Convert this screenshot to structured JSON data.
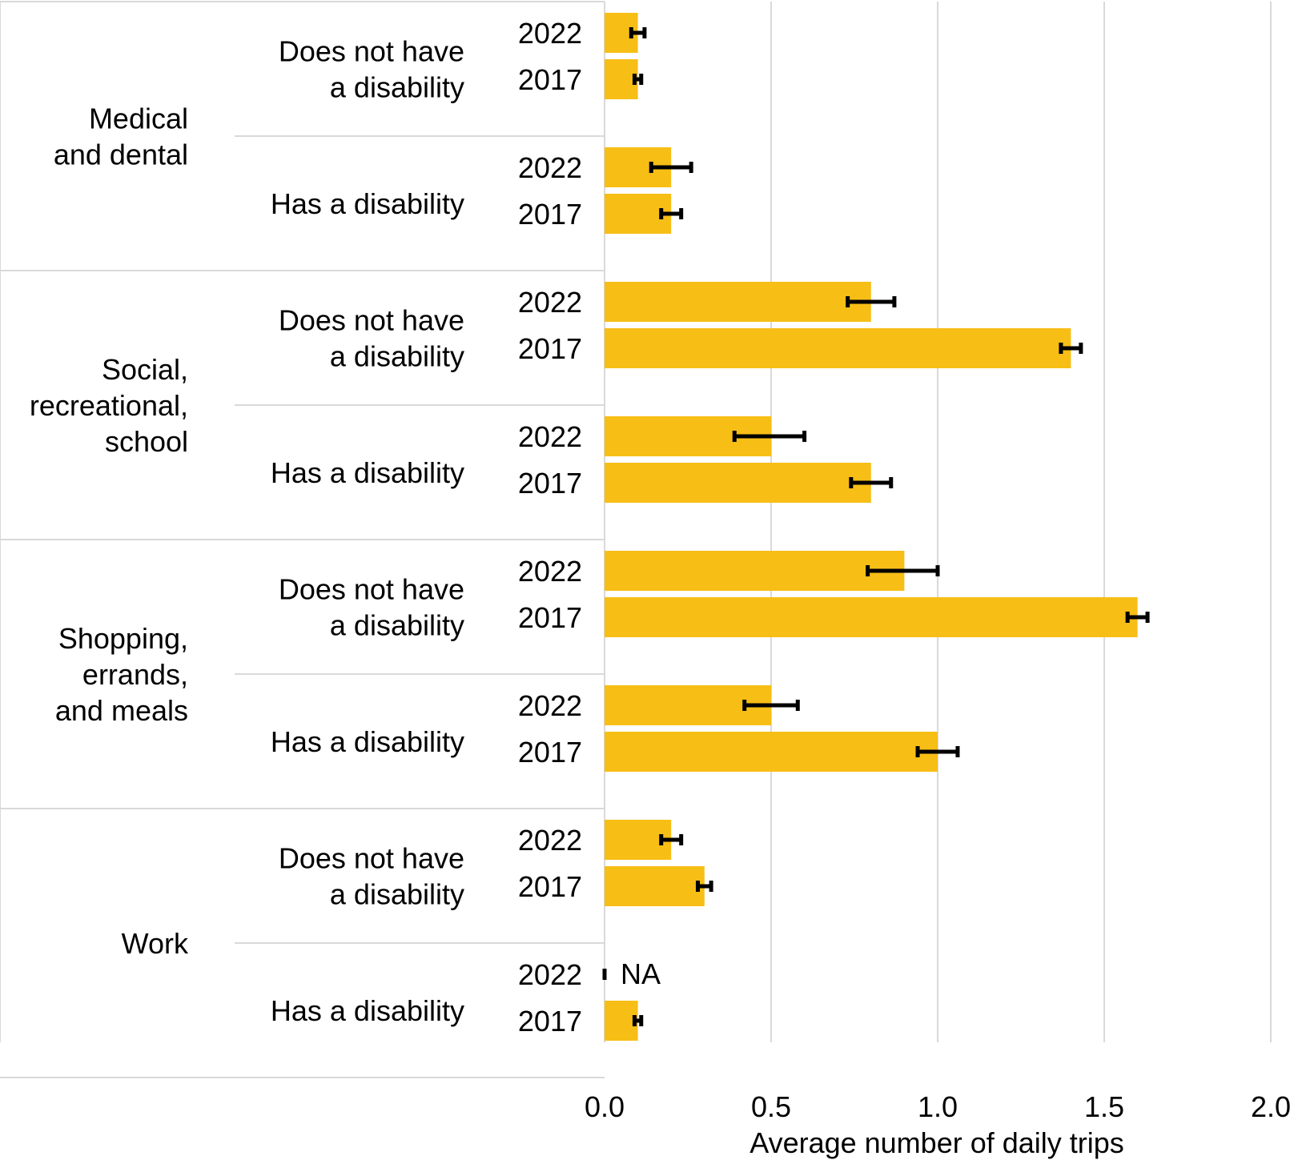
{
  "chart_data": {
    "type": "bar",
    "orientation": "horizontal",
    "xlabel": "Average number of daily trips",
    "xlim": [
      0,
      2.0
    ],
    "xticks": [
      "0.0",
      "0.5",
      "1.0",
      "1.5",
      "2.0"
    ],
    "grid": true,
    "bar_color": "#F7BE16",
    "error_bar_color": "#000000",
    "groups": [
      {
        "category": [
          "Medical",
          "and dental"
        ],
        "subgroups": [
          {
            "label": [
              "Does not have",
              "a disability"
            ],
            "bars": [
              {
                "year": "2022",
                "value": 0.1,
                "err_low": 0.08,
                "err_high": 0.12
              },
              {
                "year": "2017",
                "value": 0.1,
                "err_low": 0.09,
                "err_high": 0.11
              }
            ]
          },
          {
            "label": [
              "Has a disability"
            ],
            "bars": [
              {
                "year": "2022",
                "value": 0.2,
                "err_low": 0.14,
                "err_high": 0.26
              },
              {
                "year": "2017",
                "value": 0.2,
                "err_low": 0.17,
                "err_high": 0.23
              }
            ]
          }
        ]
      },
      {
        "category": [
          "Social,",
          "recreational,",
          "school"
        ],
        "subgroups": [
          {
            "label": [
              "Does not have",
              "a disability"
            ],
            "bars": [
              {
                "year": "2022",
                "value": 0.8,
                "err_low": 0.73,
                "err_high": 0.87
              },
              {
                "year": "2017",
                "value": 1.4,
                "err_low": 1.37,
                "err_high": 1.43
              }
            ]
          },
          {
            "label": [
              "Has a disability"
            ],
            "bars": [
              {
                "year": "2022",
                "value": 0.5,
                "err_low": 0.39,
                "err_high": 0.6
              },
              {
                "year": "2017",
                "value": 0.8,
                "err_low": 0.74,
                "err_high": 0.86
              }
            ]
          }
        ]
      },
      {
        "category": [
          "Shopping,",
          "errands,",
          "and meals"
        ],
        "subgroups": [
          {
            "label": [
              "Does not have",
              "a disability"
            ],
            "bars": [
              {
                "year": "2022",
                "value": 0.9,
                "err_low": 0.79,
                "err_high": 1.0
              },
              {
                "year": "2017",
                "value": 1.6,
                "err_low": 1.57,
                "err_high": 1.63
              }
            ]
          },
          {
            "label": [
              "Has a disability"
            ],
            "bars": [
              {
                "year": "2022",
                "value": 0.5,
                "err_low": 0.42,
                "err_high": 0.58
              },
              {
                "year": "2017",
                "value": 1.0,
                "err_low": 0.94,
                "err_high": 1.06
              }
            ]
          }
        ]
      },
      {
        "category": [
          "Work"
        ],
        "subgroups": [
          {
            "label": [
              "Does not have",
              "a disability"
            ],
            "bars": [
              {
                "year": "2022",
                "value": 0.2,
                "err_low": 0.17,
                "err_high": 0.23
              },
              {
                "year": "2017",
                "value": 0.3,
                "err_low": 0.28,
                "err_high": 0.32
              }
            ]
          },
          {
            "label": [
              "Has a disability"
            ],
            "bars": [
              {
                "year": "2022",
                "value": null,
                "label": "NA"
              },
              {
                "year": "2017",
                "value": 0.1,
                "err_low": 0.09,
                "err_high": 0.11
              }
            ]
          }
        ]
      }
    ]
  }
}
